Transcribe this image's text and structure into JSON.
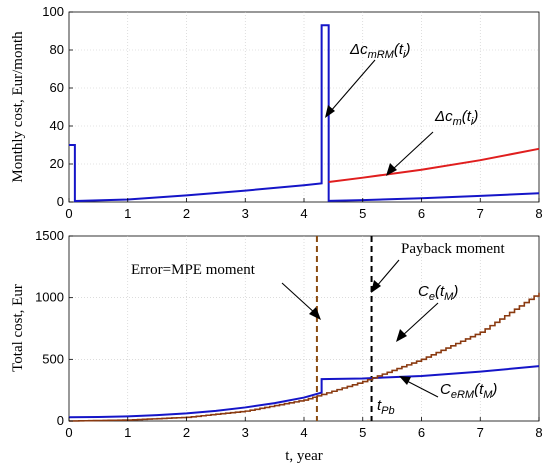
{
  "chart_data": [
    {
      "type": "line",
      "ylabel": "Monthly cost, Eur/month",
      "xlim": [
        0,
        8
      ],
      "ylim": [
        0,
        100
      ],
      "x_ticks": [
        "0",
        "1",
        "2",
        "3",
        "4",
        "5",
        "6",
        "7",
        "8"
      ],
      "y_ticks": [
        "0",
        "20",
        "40",
        "60",
        "80",
        "100"
      ],
      "grid": true,
      "series": [
        {
          "color": "#1515c8",
          "points": [
            [
              0,
              30
            ],
            [
              0.1,
              30
            ],
            [
              0.1,
              0.5
            ],
            [
              1,
              1.3
            ],
            [
              2,
              3.5
            ],
            [
              3,
              6
            ],
            [
              4,
              8.8
            ],
            [
              4.3,
              9.8
            ],
            [
              4.3,
              93
            ],
            [
              4.42,
              93
            ],
            [
              4.42,
              0.6
            ],
            [
              5,
              1
            ],
            [
              6,
              2
            ],
            [
              7,
              3.2
            ],
            [
              8,
              4.6
            ]
          ]
        },
        {
          "color": "#e01e1e",
          "points": [
            [
              4.42,
              10.5
            ],
            [
              5,
              12.8
            ],
            [
              6,
              17
            ],
            [
              7,
              22
            ],
            [
              8,
              28
            ]
          ]
        }
      ],
      "annotations": [
        {
          "text_main": "Δc",
          "text_sub": "mRM",
          "text_arg": "(t",
          "text_arg_sub": "i",
          "text_close": ")",
          "points_to": [
            4.35,
            48
          ]
        },
        {
          "text_main": "Δc",
          "text_sub": "m",
          "text_arg": "(t",
          "text_arg_sub": "i",
          "text_close": ")",
          "points_to": [
            5.35,
            15
          ]
        }
      ]
    },
    {
      "type": "line",
      "xlabel": "t, year",
      "ylabel": "Total cost, Eur",
      "xlim": [
        0,
        8
      ],
      "ylim": [
        0,
        1500
      ],
      "x_ticks": [
        "0",
        "1",
        "2",
        "3",
        "4",
        "5",
        "6",
        "7",
        "8"
      ],
      "y_ticks": [
        "0",
        "500",
        "1000",
        "1500"
      ],
      "grid": true,
      "series": [
        {
          "color": "#1515c8",
          "points": [
            [
              0,
              30
            ],
            [
              0.5,
              32
            ],
            [
              1,
              38
            ],
            [
              1.5,
              48
            ],
            [
              2,
              62
            ],
            [
              2.5,
              82
            ],
            [
              3,
              110
            ],
            [
              3.5,
              145
            ],
            [
              4,
              190
            ],
            [
              4.3,
              230
            ],
            [
              4.3,
              340
            ],
            [
              5,
              345
            ],
            [
              6,
              365
            ],
            [
              7,
              400
            ],
            [
              8,
              445
            ]
          ]
        },
        {
          "color": "#8a3a10",
          "stepped": true,
          "points": [
            [
              0,
              0
            ],
            [
              1,
              8
            ],
            [
              2,
              30
            ],
            [
              3,
              80
            ],
            [
              4,
              170
            ],
            [
              4.3,
              215
            ],
            [
              5,
              320
            ],
            [
              5.5,
              410
            ],
            [
              6,
              500
            ],
            [
              6.5,
              610
            ],
            [
              7,
              720
            ],
            [
              7.5,
              880
            ],
            [
              8,
              1040
            ]
          ]
        }
      ],
      "vlines": [
        {
          "x": 4.22,
          "color": "#8a4a10"
        },
        {
          "x": 5.15,
          "color": "#000000"
        }
      ],
      "annotations": [
        {
          "text": "Error=MPE moment",
          "points_to": [
            4.25,
            800
          ]
        },
        {
          "text": "Payback moment",
          "points_to": [
            5.05,
            1050
          ]
        },
        {
          "text_main": "C",
          "text_sub": "e",
          "text_arg": "(t",
          "text_arg_sub": "M",
          "text_close": ")",
          "points_to": [
            5.55,
            450
          ]
        },
        {
          "text_main": "C",
          "text_sub": "eRM",
          "text_arg": "(t",
          "text_arg_sub": "M",
          "text_close": ")",
          "points_to": [
            5.7,
            340
          ]
        },
        {
          "text_main": "t",
          "text_sub": "Pb"
        }
      ]
    }
  ]
}
